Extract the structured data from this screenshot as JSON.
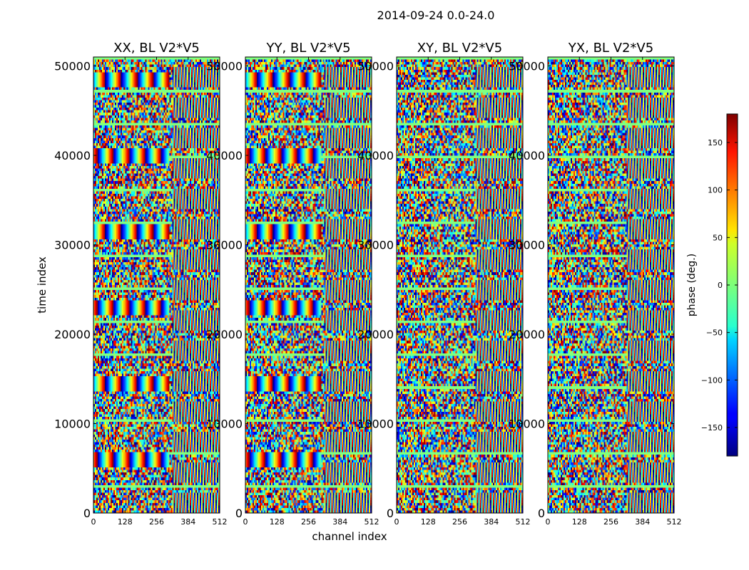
{
  "figure": {
    "title": "2014-09-24 0.0-24.0",
    "xlabel": "channel index",
    "ylabel": "time index"
  },
  "colorbar": {
    "label": "phase (deg.)",
    "ticks": [
      150,
      100,
      50,
      0,
      -50,
      -100,
      -150
    ],
    "tick_labels": [
      "150",
      "100",
      "50",
      "0",
      "−50",
      "−100",
      "−150"
    ],
    "range": [
      -180,
      180
    ],
    "colormap": "jet"
  },
  "chart_data": {
    "type": "heatmap",
    "title": "2014-09-24 0.0-24.0",
    "xlabel": "channel index",
    "ylabel": "time index",
    "xlim": [
      0,
      512
    ],
    "ylim": [
      0,
      51000
    ],
    "x_ticks": [
      0,
      128,
      256,
      384,
      512
    ],
    "y_ticks": [
      0,
      10000,
      20000,
      30000,
      40000,
      50000
    ],
    "value_label": "phase (deg.)",
    "value_range": [
      -180,
      180
    ],
    "panels": [
      {
        "title": "XX, BL V2*V5",
        "pol": "XX"
      },
      {
        "title": "YY, BL V2*V5",
        "pol": "YY"
      },
      {
        "title": "XY, BL V2*V5",
        "pol": "XY"
      },
      {
        "title": "YX, BL V2*V5",
        "pol": "YX"
      }
    ]
  }
}
